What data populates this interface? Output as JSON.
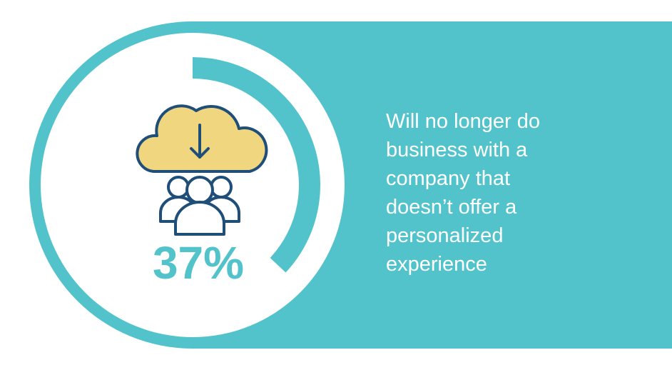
{
  "chart_data": {
    "type": "donut",
    "values": [
      37
    ],
    "value_labels": [
      "37%"
    ],
    "max": 100,
    "color": "#52c3cb",
    "annotation": "Will no longer do business with a company that doesn’t offer a personalized experience"
  }
}
